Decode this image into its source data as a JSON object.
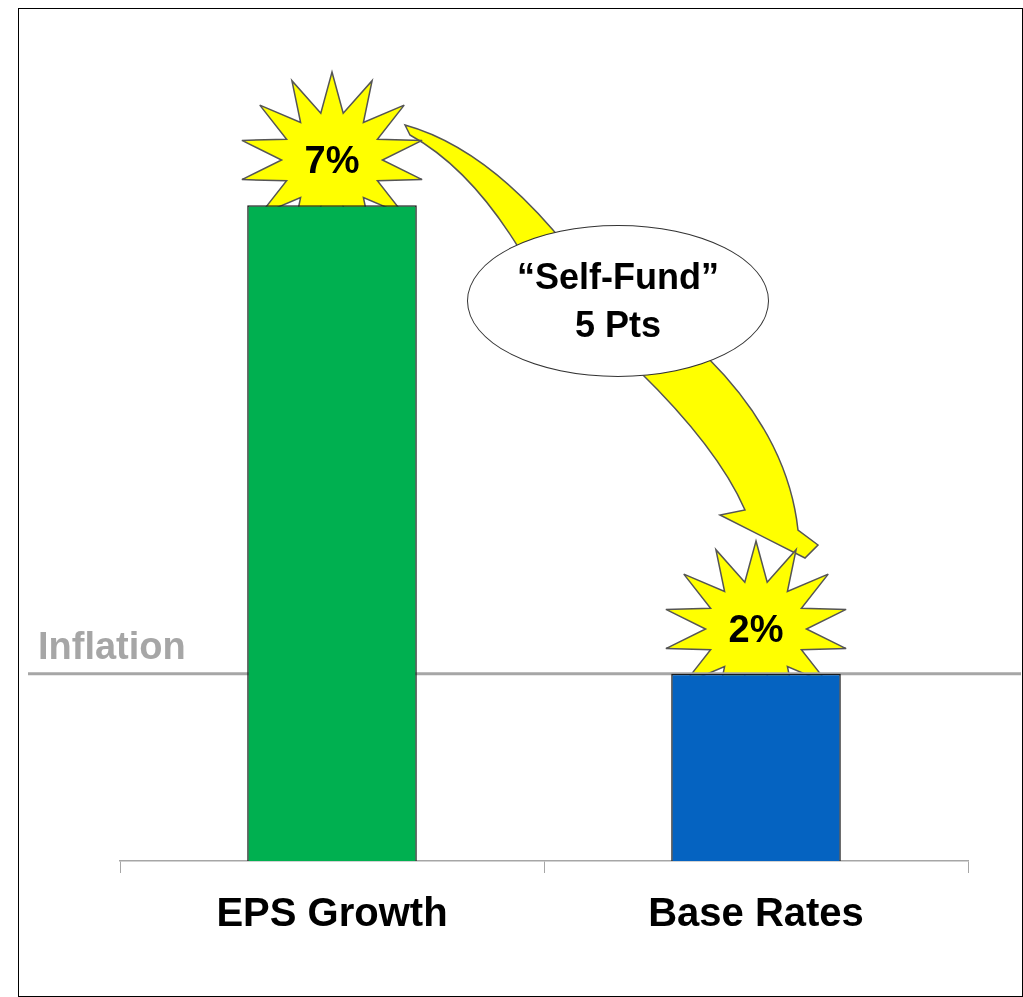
{
  "chart_data": {
    "type": "bar",
    "categories": [
      "EPS Growth",
      "Base Rates"
    ],
    "values": [
      7,
      2
    ],
    "colors": [
      "#00b050",
      "#0563c1"
    ],
    "value_labels": [
      "7%",
      "2%"
    ],
    "ref_lines": [
      {
        "axis": "y",
        "value": 2,
        "label": "Inflation",
        "color": "#a6a6a6"
      }
    ],
    "annotations": [
      "“Self-Fund”\n5 Pts"
    ],
    "tick_labels": "x",
    "grid": false
  }
}
